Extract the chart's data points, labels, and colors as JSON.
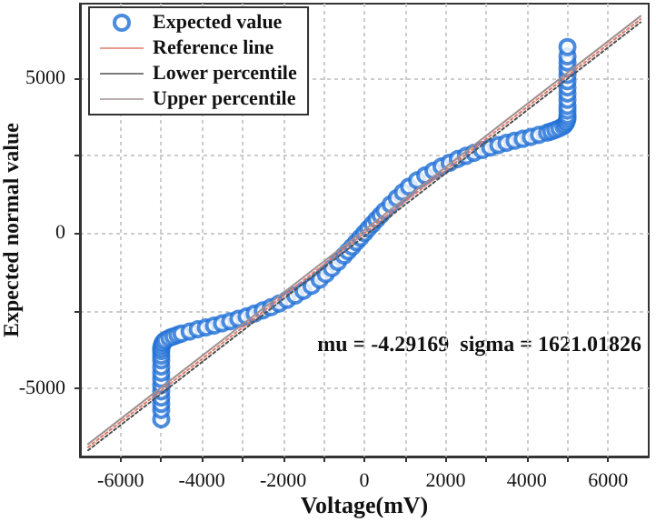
{
  "chart_data": {
    "type": "scatter",
    "xlabel": "Voltage(mV)",
    "ylabel": "Expected normal value",
    "annotations": [
      "mu = -4.29169  sigma = 1621.01826"
    ],
    "xlim": [
      -7000,
      7000
    ],
    "ylim": [
      -7200,
      7400
    ],
    "xticks": [
      -6000,
      {
        "value": -5000,
        "label": null
      },
      -4000,
      {
        "value": -3000,
        "label": null
      },
      -2000,
      {
        "value": -1000,
        "label": null
      },
      0,
      {
        "value": 1000,
        "label": null
      },
      2000,
      {
        "value": 3000,
        "label": null
      },
      4000,
      {
        "value": 5000,
        "label": null
      },
      6000
    ],
    "yticks": [
      -5000,
      {
        "value": -2500,
        "label": null
      },
      0,
      {
        "value": 2500,
        "label": null
      },
      5000
    ],
    "grid": true,
    "legend": "top left",
    "marker": "circle",
    "series": [
      {
        "name": "Expected value",
        "color": "#1f6fd6",
        "x": [
          -5000,
          -5000,
          -5000,
          -5000,
          -5000,
          -5000,
          -5000,
          -5000,
          -5000,
          -5000,
          -5000,
          -5000,
          -5000,
          -4980,
          -4950,
          -4900,
          -4800,
          -4700,
          -4600,
          -4500,
          -4300,
          -4100,
          -3900,
          -3700,
          -3500,
          -3300,
          -3100,
          -2900,
          -2700,
          -2500,
          -2300,
          -2100,
          -1900,
          -1700,
          -1500,
          -1300,
          -1100,
          -950,
          -800,
          -650,
          -500,
          -400,
          -300,
          -200,
          -100,
          0,
          100,
          200,
          300,
          400,
          500,
          650,
          800,
          950,
          1100,
          1300,
          1500,
          1700,
          1900,
          2100,
          2300,
          2500,
          2700,
          2900,
          3100,
          3300,
          3500,
          3700,
          3900,
          4100,
          4300,
          4500,
          4600,
          4700,
          4800,
          4900,
          4950,
          4980,
          5000,
          5000,
          5000,
          5000,
          5000,
          5000,
          5000,
          5000,
          5000,
          5000,
          5000,
          5000,
          5000
        ],
        "values": [
          -6000,
          -5700,
          -5500,
          -5300,
          -5100,
          -4900,
          -4700,
          -4500,
          -4300,
          -4100,
          -3950,
          -3800,
          -3700,
          -3600,
          -3520,
          -3450,
          -3380,
          -3330,
          -3280,
          -3240,
          -3170,
          -3100,
          -3040,
          -2980,
          -2910,
          -2840,
          -2760,
          -2680,
          -2590,
          -2490,
          -2390,
          -2270,
          -2150,
          -2010,
          -1860,
          -1700,
          -1500,
          -1320,
          -1130,
          -930,
          -720,
          -580,
          -440,
          -290,
          -150,
          0,
          150,
          290,
          440,
          580,
          720,
          930,
          1130,
          1320,
          1500,
          1700,
          1860,
          2010,
          2150,
          2270,
          2390,
          2490,
          2590,
          2680,
          2760,
          2840,
          2910,
          2980,
          3040,
          3100,
          3170,
          3240,
          3280,
          3330,
          3380,
          3450,
          3520,
          3600,
          3700,
          3800,
          3950,
          4100,
          4300,
          4500,
          4700,
          4900,
          5100,
          5300,
          5500,
          5700,
          6000
        ]
      },
      {
        "name": "Reference line",
        "type": "line",
        "color": "#e07a6a",
        "marker": "none",
        "line_style": "dotted",
        "x": [
          -6800,
          6800
        ],
        "values": [
          -6900,
          6900
        ]
      },
      {
        "name": "Lower percentile",
        "type": "line",
        "color": "#505050",
        "marker": "none",
        "line_style": "dotted",
        "x": [
          -6800,
          6800
        ],
        "values": [
          -7000,
          6800
        ]
      },
      {
        "name": "Upper percentile",
        "type": "line",
        "color": "#a09090",
        "marker": "none",
        "line_style": "solid",
        "x": [
          -6800,
          6800
        ],
        "values": [
          -6800,
          7000
        ]
      }
    ]
  }
}
